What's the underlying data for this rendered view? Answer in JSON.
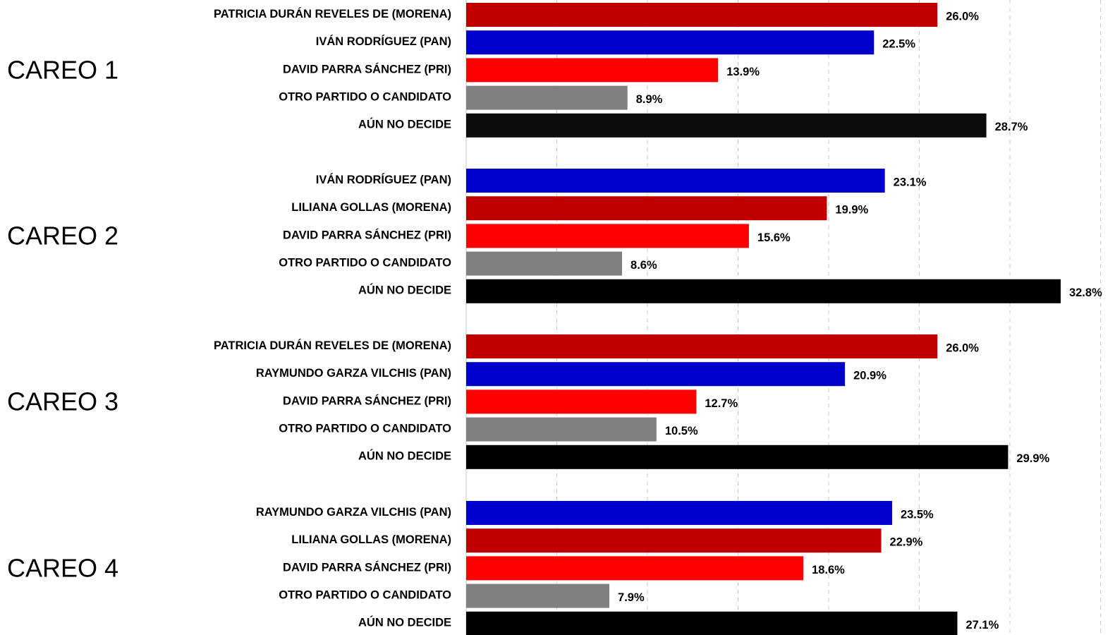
{
  "chart_data": {
    "type": "bar",
    "orientation": "horizontal",
    "value_format": "percent",
    "xlim": [
      0,
      35
    ],
    "grid": true,
    "groups": [
      {
        "title": "CAREO 1",
        "bars": [
          {
            "label": "PATRICIA DURÁN REVELES DE (MORENA)",
            "value": 26.0,
            "value_label": "26.0%",
            "color": "#c00000"
          },
          {
            "label": "IVÁN RODRÍGUEZ (PAN)",
            "value": 22.5,
            "value_label": "22.5%",
            "color": "#0000cc"
          },
          {
            "label": "DAVID PARRA SÁNCHEZ (PRI)",
            "value": 13.9,
            "value_label": "13.9%",
            "color": "#ff0000"
          },
          {
            "label": "OTRO PARTIDO O CANDIDATO",
            "value": 8.9,
            "value_label": "8.9%",
            "color": "#808080"
          },
          {
            "label": "AÚN NO DECIDE",
            "value": 28.7,
            "value_label": "28.7%",
            "color": "#0d0d0d"
          }
        ]
      },
      {
        "title": "CAREO 2",
        "bars": [
          {
            "label": "IVÁN RODRÍGUEZ (PAN)",
            "value": 23.1,
            "value_label": "23.1%",
            "color": "#0000cc"
          },
          {
            "label": "LILIANA GOLLAS (MORENA)",
            "value": 19.9,
            "value_label": "19.9%",
            "color": "#c00000"
          },
          {
            "label": "DAVID PARRA SÁNCHEZ (PRI)",
            "value": 15.6,
            "value_label": "15.6%",
            "color": "#ff0000"
          },
          {
            "label": "OTRO PARTIDO O CANDIDATO",
            "value": 8.6,
            "value_label": "8.6%",
            "color": "#808080"
          },
          {
            "label": "AÚN NO DECIDE",
            "value": 32.8,
            "value_label": "32.8%",
            "color": "#000000"
          }
        ]
      },
      {
        "title": "CAREO 3",
        "bars": [
          {
            "label": "PATRICIA DURÁN REVELES DE (MORENA)",
            "value": 26.0,
            "value_label": "26.0%",
            "color": "#c00000"
          },
          {
            "label": "RAYMUNDO GARZA VILCHIS (PAN)",
            "value": 20.9,
            "value_label": "20.9%",
            "color": "#0000cc"
          },
          {
            "label": "DAVID PARRA SÁNCHEZ (PRI)",
            "value": 12.7,
            "value_label": "12.7%",
            "color": "#ff0000"
          },
          {
            "label": "OTRO PARTIDO O CANDIDATO",
            "value": 10.5,
            "value_label": "10.5%",
            "color": "#808080"
          },
          {
            "label": "AÚN NO DECIDE",
            "value": 29.9,
            "value_label": "29.9%",
            "color": "#000000"
          }
        ]
      },
      {
        "title": "CAREO 4",
        "bars": [
          {
            "label": "RAYMUNDO GARZA VILCHIS (PAN)",
            "value": 23.5,
            "value_label": "23.5%",
            "color": "#0000cc"
          },
          {
            "label": "LILIANA GOLLAS (MORENA)",
            "value": 22.9,
            "value_label": "22.9%",
            "color": "#c00000"
          },
          {
            "label": "DAVID PARRA SÁNCHEZ (PRI)",
            "value": 18.6,
            "value_label": "18.6%",
            "color": "#ff0000"
          },
          {
            "label": "OTRO PARTIDO O CANDIDATO",
            "value": 7.9,
            "value_label": "7.9%",
            "color": "#808080"
          },
          {
            "label": "AÚN NO DECIDE",
            "value": 27.1,
            "value_label": "27.1%",
            "color": "#000000"
          }
        ]
      }
    ]
  }
}
